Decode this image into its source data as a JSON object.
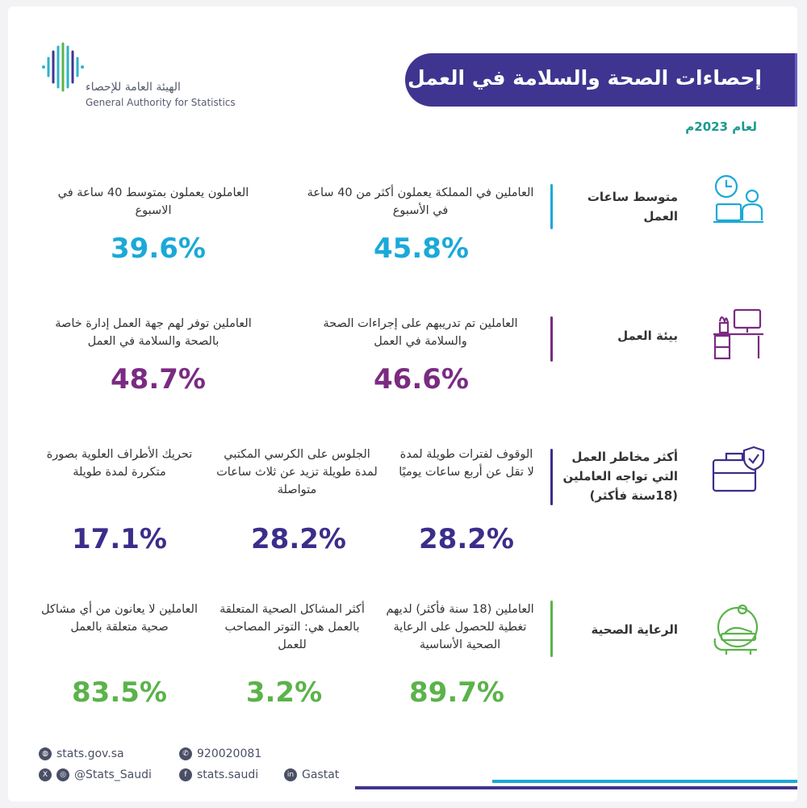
{
  "header": {
    "title": "إحصاءات الصحة والسلامة في العمل",
    "year": "لعام 2023م",
    "logo_ar": "الهيئة العامة للإحصاء",
    "logo_en": "General Authority for Statistics"
  },
  "colors": {
    "purple_dark": "#3f3590",
    "blue": "#1ba9d8",
    "purple": "#7a2b82",
    "indigo": "#3b2e8a",
    "green": "#5bb34a"
  },
  "sections": [
    {
      "label": "متوسط ساعات العمل",
      "icon": "clock-worker-icon",
      "stats": [
        {
          "text": "العاملين في المملكة يعملون أكثر من 40 ساعة في الأسبوع",
          "value": "45.8%"
        },
        {
          "text": "العاملون يعملون بمتوسط 40 ساعة في الاسبوع",
          "value": "39.6%"
        }
      ]
    },
    {
      "label": "بيئة العمل",
      "icon": "office-desk-icon",
      "stats": [
        {
          "text": "العاملين تم تدريبهم على إجراءات الصحة والسلامة في العمل",
          "value": "46.6%"
        },
        {
          "text": "العاملين توفر لهم جهة العمل إدارة خاصة بالصحة والسلامة في العمل",
          "value": "48.7%"
        }
      ]
    },
    {
      "label": "أكثر مخاطر العمل التي تواجه العاملين (18سنة فأكثر)",
      "icon": "briefcase-shield-icon",
      "stats": [
        {
          "text": "الوقوف لفترات طويلة لمدة لا تقل عن أربع ساعات يوميًا",
          "value": "28.2%"
        },
        {
          "text": "الجلوس على الكرسي المكتبي لمدة طويلة تزيد عن ثلاث ساعات متواصلة",
          "value": "28.2%"
        },
        {
          "text": "تحريك الأطراف العلوية بصورة متكررة لمدة طويلة",
          "value": "17.1%"
        }
      ]
    },
    {
      "label": "الرعاية الصحية",
      "icon": "healthcare-bed-icon",
      "stats": [
        {
          "text": "العاملين (18 سنة فأكثر) لديهم تغطية للحصول على الرعاية الصحية الأساسية",
          "value": "89.7%"
        },
        {
          "text": "أكثر المشاكل الصحية المتعلقة بالعمل هي: التوتر المصاحب للعمل",
          "value": "3.2%"
        },
        {
          "text": "العاملين لا يعانون من أي مشاكل صحية متعلقة بالعمل",
          "value": "83.5%"
        }
      ]
    }
  ],
  "footer": {
    "website": "stats.gov.sa",
    "phone": "920020081",
    "social": "@Stats_Saudi",
    "facebook": "stats.saudi",
    "linkedin": "Gastat"
  }
}
